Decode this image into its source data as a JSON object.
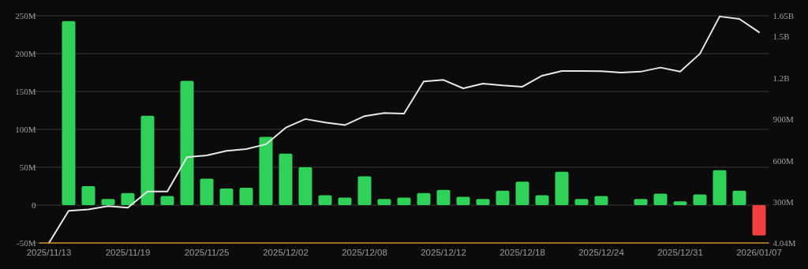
{
  "chart_data": {
    "type": "bar",
    "categories": [
      "2025/11/13",
      null,
      null,
      null,
      "2025/11/19",
      null,
      null,
      null,
      "2025/11/25",
      null,
      null,
      null,
      "2025/12/02",
      null,
      null,
      null,
      "2025/12/08",
      null,
      null,
      null,
      "2025/12/12",
      null,
      null,
      null,
      "2025/12/18",
      null,
      null,
      null,
      "2025/12/24",
      null,
      null,
      null,
      "2025/12/31",
      null,
      null,
      null,
      "2026/01/07"
    ],
    "series": [
      {
        "colors": [
          null,
          "#2fd158",
          "#2fd158",
          "#2fd158",
          "#2fd158",
          "#2fd158",
          "#2fd158",
          "#2fd158",
          "#2fd158",
          "#2fd158",
          "#2fd158",
          "#2fd158",
          "#2fd158",
          "#2fd158",
          "#2fd158",
          "#2fd158",
          "#2fd158",
          "#2fd158",
          "#2fd158",
          "#2fd158",
          "#2fd158",
          "#2fd158",
          "#2fd158",
          "#2fd158",
          "#2fd158",
          "#2fd158",
          "#2fd158",
          "#2fd158",
          "#2fd158",
          null,
          "#2fd158",
          "#2fd158",
          "#2fd158",
          "#2fd158",
          "#2fd158",
          "#2fd158",
          "#f23f3f"
        ],
        "values": [
          null,
          243,
          25,
          8,
          16,
          118,
          12,
          164,
          35,
          22,
          23,
          90,
          68,
          50,
          13,
          10,
          38,
          8,
          10,
          16,
          20,
          11,
          8,
          19,
          31,
          13,
          44,
          8,
          12,
          null,
          8,
          15,
          5,
          14,
          46,
          19,
          -40
        ]
      },
      {
        "type": "line",
        "axis": "y2",
        "color": "#e8e8e8",
        "values": [
          4040000,
          237000000,
          247000000,
          271000000,
          260000000,
          377000000,
          377000000,
          625000000,
          638000000,
          671000000,
          684000000,
          719000000,
          839000000,
          902000000,
          877000000,
          858000000,
          923000000,
          945000000,
          941000000,
          1174000000,
          1185000000,
          1124000000,
          1158000000,
          1145000000,
          1136000000,
          1216000000,
          1250000000,
          1250000000,
          1248000000,
          1239000000,
          1245000000,
          1275000000,
          1246000000,
          1375000000,
          1645000000,
          1627000000,
          1531000000
        ]
      }
    ],
    "ylim": [
      -50,
      250
    ],
    "yticks": [
      {
        "value": -50,
        "label": "-50M"
      },
      0,
      {
        "value": 50,
        "label": "50M"
      },
      {
        "value": 100,
        "label": "100M"
      },
      {
        "value": 150,
        "label": "150M"
      },
      {
        "value": 200,
        "label": "200M"
      },
      {
        "value": 250,
        "label": "250M"
      }
    ],
    "y2lim": [
      4040000,
      1650000000
    ],
    "y2ticks": [
      {
        "value": 4040000,
        "label": "4.04M"
      },
      {
        "value": 300000000,
        "label": "300M"
      },
      {
        "value": 600000000,
        "label": "600M"
      },
      {
        "value": 900000000,
        "label": "900M"
      },
      {
        "value": 1200000000,
        "label": "1.2B"
      },
      {
        "value": 1500000000,
        "label": "1.5B"
      },
      {
        "value": 1650000000,
        "label": "1.65B"
      }
    ],
    "grid": "y",
    "marker": "none",
    "line_style": "solid"
  }
}
